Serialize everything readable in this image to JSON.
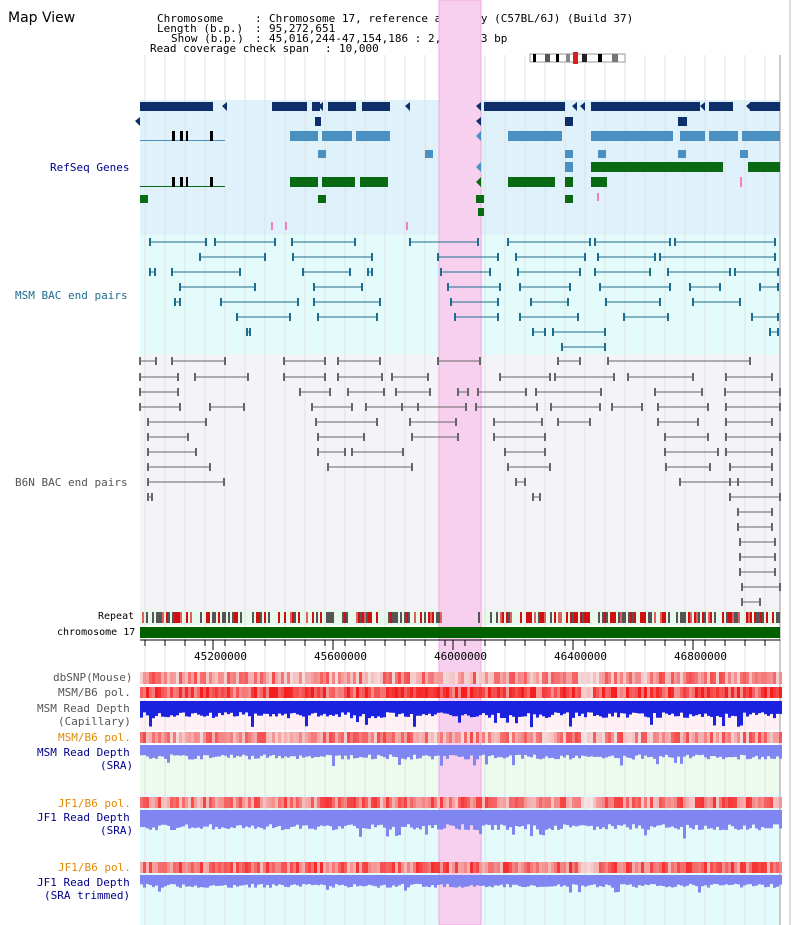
{
  "view_title": "Map View",
  "info": {
    "chromosome_key": "Chromosome",
    "chromosome_val": "Chromosome 17, reference assembly (C57BL/6J) (Build 37)",
    "length_key": "Length (b.p.)",
    "length_val": "95,272,651",
    "show_key": "Show (b.p.)",
    "show_val": "45,016,244-47,154,186 : 2,137,943 bp",
    "span_key": "Read coverage check span",
    "span_val": "10,000"
  },
  "tracks": {
    "refseq": "RefSeq Genes",
    "msm_bac": "MSM BAC end pairs",
    "b6n_bac": "B6N BAC end pairs",
    "repeat": "Repeat",
    "chromosome": "chromosome 17",
    "dbsnp": "dbSNP(Mouse)",
    "msm_b6_pol": "MSM/B6 pol.",
    "msm_depth_cap_1": "MSM Read Depth",
    "msm_depth_cap_2": "(Capillary)",
    "msm_b6_pol_2": "MSM/B6 pol.",
    "msm_depth_sra_1": "MSM Read Depth",
    "msm_depth_sra_2": "(SRA)",
    "jf1_pol_1": "JF1/B6 pol.",
    "jf1_depth_1": "JF1 Read Depth",
    "jf1_depth_1b": "(SRA)",
    "jf1_pol_2": "JF1/B6 pol.",
    "jf1_depth_2": "JF1 Read Depth",
    "jf1_depth_2b": "(SRA trimmed)"
  },
  "ruler_ticks": [
    "45200000",
    "45600000",
    "46000000",
    "46400000",
    "46800000"
  ],
  "colors": {
    "refseq_bg": "#dff1fb",
    "msm_bg": "#e4fbfb",
    "b6n_bg": "#f4f4f8",
    "highlight": "#f7d0ef",
    "chromosome": "#006000",
    "navy": "#0f2f6a",
    "steel": "#4a90c0",
    "green": "#0a6a14",
    "teal": "#1f6d8e",
    "gray": "#666666",
    "depth_blue": "#1a22e0",
    "depth_light": "#7f86f2",
    "refseq_label": "#00008b",
    "msm_label": "#1f6d8e",
    "b6n_label": "#555555",
    "orange_label": "#e08a00"
  }
}
